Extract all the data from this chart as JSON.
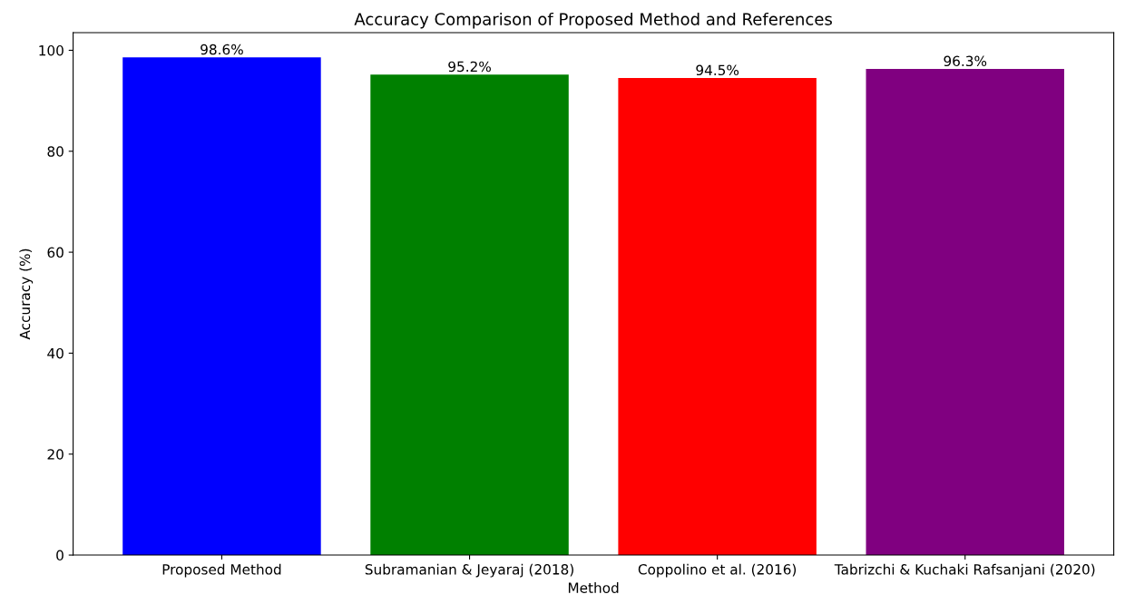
{
  "chart_data": {
    "type": "bar",
    "title": "Accuracy Comparison of Proposed Method and References",
    "xlabel": "Method",
    "ylabel": "Accuracy (%)",
    "categories": [
      "Proposed Method",
      "Subramanian & Jeyaraj (2018)",
      "Coppolino et al. (2016)",
      "Tabrizchi & Kuchaki Rafsanjani (2020)"
    ],
    "values": [
      98.6,
      95.2,
      94.5,
      96.3
    ],
    "colors": [
      "#0000ff",
      "#008000",
      "#ff0000",
      "#800080"
    ],
    "value_labels": [
      "98.6%",
      "95.2%",
      "94.5%",
      "96.3%"
    ],
    "ylim": [
      0,
      103.5
    ],
    "yticks": [
      0,
      20,
      40,
      60,
      80,
      100
    ],
    "grid": false,
    "legend": false
  }
}
